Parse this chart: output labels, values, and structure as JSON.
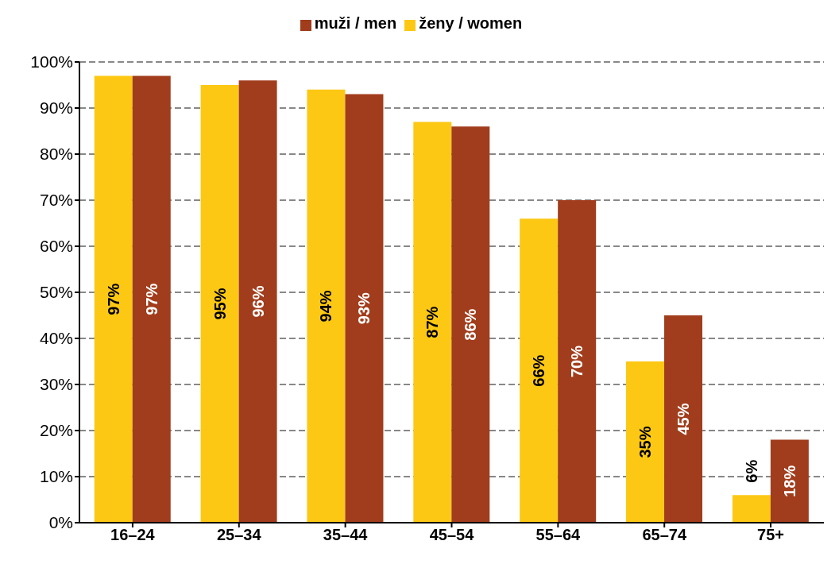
{
  "chart_data": {
    "type": "bar",
    "categories": [
      "16–24",
      "25–34",
      "35–44",
      "45–54",
      "55–64",
      "65–74",
      "75+"
    ],
    "series": [
      {
        "name": "ženy / women",
        "color": "#fcc814",
        "values": [
          97,
          95,
          94,
          87,
          66,
          35,
          6
        ],
        "value_labels": [
          "97%",
          "95%",
          "94%",
          "87%",
          "66%",
          "35%",
          "6%"
        ]
      },
      {
        "name": "muži / men",
        "color": "#a13d1c",
        "values": [
          97,
          96,
          93,
          86,
          70,
          45,
          18
        ],
        "value_labels": [
          "97%",
          "96%",
          "93%",
          "86%",
          "70%",
          "45%",
          "18%"
        ]
      }
    ],
    "ylim": [
      0,
      100
    ],
    "yticks": [
      {
        "value": 0,
        "label": "0%"
      },
      {
        "value": 10,
        "label": "10%"
      },
      {
        "value": 20,
        "label": "20%"
      },
      {
        "value": 30,
        "label": "30%"
      },
      {
        "value": 40,
        "label": "40%"
      },
      {
        "value": 50,
        "label": "50%"
      },
      {
        "value": 60,
        "label": "60%"
      },
      {
        "value": 70,
        "label": "70%"
      },
      {
        "value": 80,
        "label": "80%"
      },
      {
        "value": 90,
        "label": "90%"
      },
      {
        "value": 100,
        "label": "100%"
      }
    ],
    "grid": "y",
    "legend": "top"
  }
}
